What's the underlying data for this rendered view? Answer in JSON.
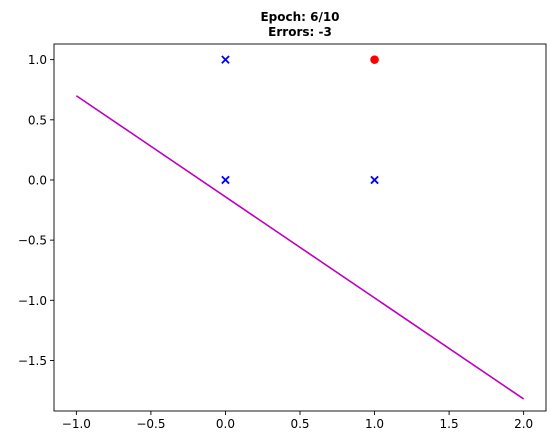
{
  "chart_data": {
    "type": "scatter",
    "title_lines": [
      "Epoch: 6/10",
      "Errors: -3"
    ],
    "xlim": [
      -1.15,
      2.15
    ],
    "ylim": [
      -1.92,
      1.13
    ],
    "xticks": [
      {
        "value": -1.0,
        "label": "−1.0"
      },
      {
        "value": -0.5,
        "label": "−0.5"
      },
      {
        "value": 0.0,
        "label": "0.0"
      },
      {
        "value": 0.5,
        "label": "0.5"
      },
      {
        "value": 1.0,
        "label": "1.0"
      },
      {
        "value": 1.5,
        "label": "1.5"
      },
      {
        "value": 2.0,
        "label": "2.0"
      }
    ],
    "yticks": [
      {
        "value": 1.0,
        "label": "1.0"
      },
      {
        "value": 0.5,
        "label": "0.5"
      },
      {
        "value": 0.0,
        "label": "0.0"
      },
      {
        "value": -0.5,
        "label": "−0.5"
      },
      {
        "value": -1.0,
        "label": "−1.0"
      },
      {
        "value": -1.5,
        "label": "−1.5"
      }
    ],
    "grid": false,
    "series": [
      {
        "marker": "x",
        "color": "#0000ff",
        "points": [
          [
            0,
            1
          ],
          [
            0,
            0
          ],
          [
            1,
            0
          ]
        ]
      },
      {
        "marker": "circle",
        "color": "#ff0000",
        "points": [
          [
            1,
            1
          ]
        ]
      }
    ],
    "lines": [
      {
        "color": "#bf00bf",
        "points": [
          [
            -1.0,
            0.7
          ],
          [
            2.0,
            -1.82
          ]
        ]
      }
    ]
  }
}
